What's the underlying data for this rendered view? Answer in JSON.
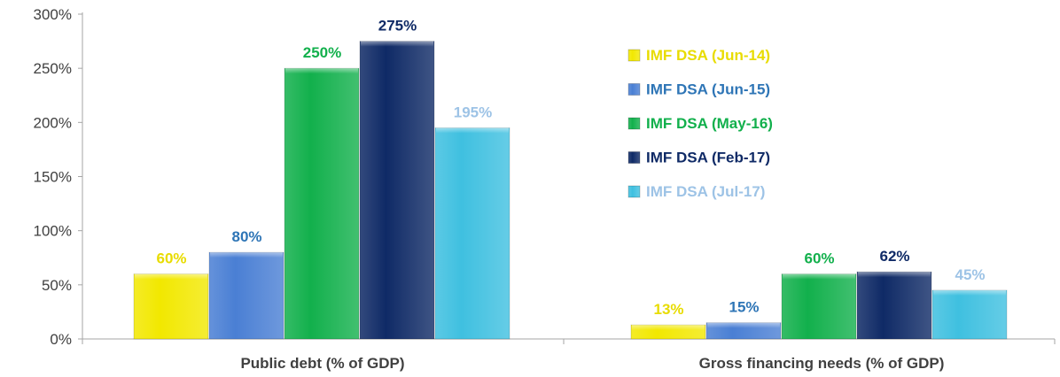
{
  "chart_data": {
    "type": "bar",
    "categories": [
      "Public debt (% of GDP)",
      "Gross financing needs (% of GDP)"
    ],
    "series": [
      {
        "name": "IMF DSA (Jun-14)",
        "values": [
          60,
          13
        ],
        "labels": [
          "60%",
          "13%"
        ],
        "color": "#f2e800",
        "label_color": "#e8dc00"
      },
      {
        "name": "IMF DSA (Jun-15)",
        "values": [
          80,
          15
        ],
        "labels": [
          "80%",
          "15%"
        ],
        "color": "#4a7fd4",
        "label_color": "#2e75b6"
      },
      {
        "name": "IMF DSA (May-16)",
        "values": [
          250,
          60
        ],
        "labels": [
          "250%",
          "60%"
        ],
        "color": "#12b04c",
        "label_color": "#12b04c"
      },
      {
        "name": "IMF DSA (Feb-17)",
        "values": [
          275,
          62
        ],
        "labels": [
          "275%",
          "62%"
        ],
        "color": "#0f2a66",
        "label_color": "#0f2a66"
      },
      {
        "name": "IMF DSA (Jul-17)",
        "values": [
          195,
          45
        ],
        "labels": [
          "195%",
          "45%"
        ],
        "color": "#3fc0e0",
        "label_color": "#9dc3e6"
      }
    ],
    "y_ticks": [
      {
        "value": 0,
        "label": "0%"
      },
      {
        "value": 50,
        "label": "50%"
      },
      {
        "value": 100,
        "label": "100%"
      },
      {
        "value": 150,
        "label": "150%"
      },
      {
        "value": 200,
        "label": "200%"
      },
      {
        "value": 250,
        "label": "250%"
      },
      {
        "value": 300,
        "label": "300%"
      }
    ],
    "ylim": [
      0,
      300
    ],
    "grid": false,
    "legend_position": "top-right"
  }
}
